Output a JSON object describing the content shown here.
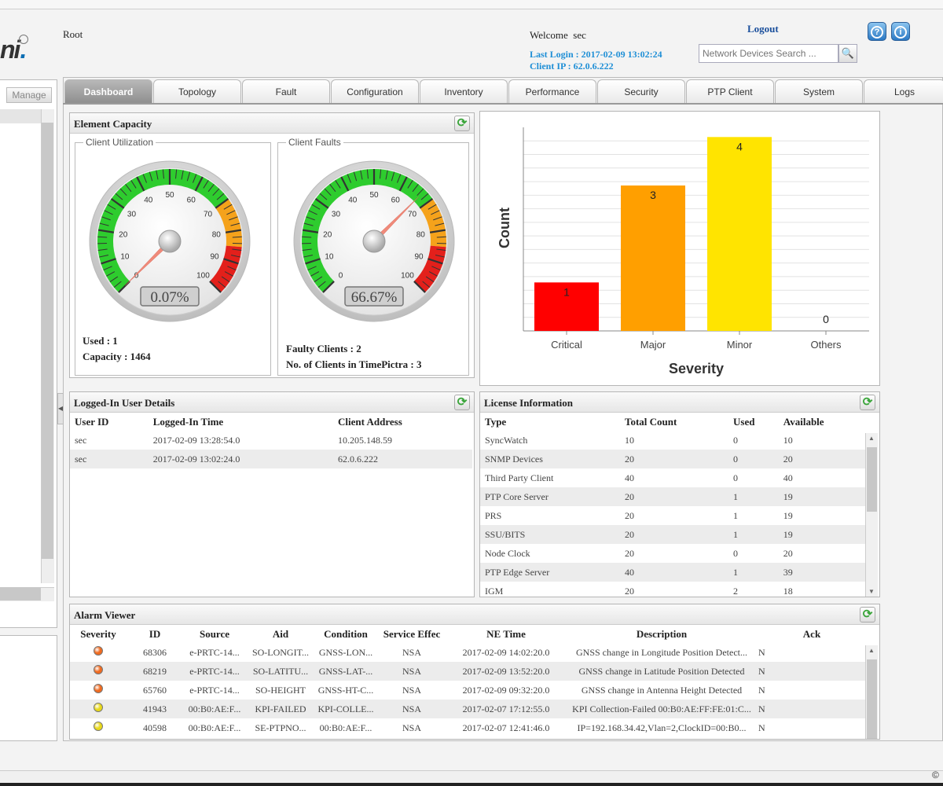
{
  "header": {
    "logo_text": "ni",
    "user_role": "Root",
    "welcome_label": "Welcome",
    "welcome_user": "sec",
    "logout_label": "Logout",
    "last_login": "Last Login : 2017-02-09 13:02:24",
    "client_ip": "Client IP : 62.0.6.222",
    "search_placeholder": "Network Devices Search ...",
    "help_icon": "?",
    "info_icon": "i"
  },
  "left_panel": {
    "manage_label": "Manage"
  },
  "tabs": [
    {
      "label": "Dashboard",
      "active": true
    },
    {
      "label": "Topology"
    },
    {
      "label": "Fault"
    },
    {
      "label": "Configuration"
    },
    {
      "label": "Inventory"
    },
    {
      "label": "Performance"
    },
    {
      "label": "Security"
    },
    {
      "label": "PTP Client"
    },
    {
      "label": "System"
    },
    {
      "label": "Logs"
    }
  ],
  "element_capacity": {
    "title": "Element Capacity",
    "utilization": {
      "legend": "Client Utilization",
      "value_text": "0.07%",
      "value": 0.07,
      "used": "Used : 1",
      "capacity": "Capacity : 1464"
    },
    "faults": {
      "legend": "Client Faults",
      "value_text": "66.67%",
      "value": 66.67,
      "faulty": "Faulty Clients : 2",
      "total": "No. of Clients in TimePictra : 3"
    },
    "gauge_ticks": [
      "0",
      "10",
      "20",
      "30",
      "40",
      "50",
      "60",
      "70",
      "80",
      "90",
      "100"
    ],
    "colors": {
      "green": "#2ecc2e",
      "orange": "#f5a21b",
      "red": "#e3201b"
    }
  },
  "chart_data": {
    "type": "bar",
    "categories": [
      "Critical",
      "Major",
      "Minor",
      "Others"
    ],
    "values": [
      1,
      3,
      4,
      0
    ],
    "colors": [
      "#ff0000",
      "#ff9f00",
      "#ffe400",
      "#cccccc"
    ],
    "title": "",
    "xlabel": "Severity",
    "ylabel": "Count",
    "ylim": [
      0,
      4.2
    ],
    "grid": true
  },
  "logged_in": {
    "title": "Logged-In User Details",
    "columns": [
      "User ID",
      "Logged-In Time",
      "Client Address"
    ],
    "rows": [
      [
        "sec",
        "2017-02-09 13:28:54.0",
        "10.205.148.59"
      ],
      [
        "sec",
        "2017-02-09 13:02:24.0",
        "62.0.6.222"
      ]
    ]
  },
  "license": {
    "title": "License Information",
    "columns": [
      "Type",
      "Total Count",
      "Used",
      "Available"
    ],
    "rows": [
      [
        "SyncWatch",
        "10",
        "0",
        "10"
      ],
      [
        "SNMP Devices",
        "20",
        "0",
        "20"
      ],
      [
        "Third Party Client",
        "40",
        "0",
        "40"
      ],
      [
        "PTP Core Server",
        "20",
        "1",
        "19"
      ],
      [
        "PRS",
        "20",
        "1",
        "19"
      ],
      [
        "SSU/BITS",
        "20",
        "1",
        "19"
      ],
      [
        "Node Clock",
        "20",
        "0",
        "20"
      ],
      [
        "PTP Edge Server",
        "40",
        "1",
        "39"
      ],
      [
        "IGM",
        "20",
        "2",
        "18"
      ]
    ]
  },
  "alarms": {
    "title": "Alarm Viewer",
    "columns": [
      "Severity",
      "ID",
      "Source",
      "Aid",
      "Condition",
      "Service Effec",
      "NE Time",
      "Description",
      "Ack"
    ],
    "rows": [
      {
        "severity": "major",
        "cells": [
          "68306",
          "e-PRTC-14...",
          "SO-LONGIT...",
          "GNSS-LON...",
          "NSA",
          "2017-02-09 14:02:20.0",
          "GNSS change in Longitude Position Detect...",
          "N"
        ]
      },
      {
        "severity": "major",
        "cells": [
          "68219",
          "e-PRTC-14...",
          "SO-LATITU...",
          "GNSS-LAT-...",
          "NSA",
          "2017-02-09 13:52:20.0",
          "GNSS change in Latitude Position Detected",
          "N"
        ]
      },
      {
        "severity": "major",
        "cells": [
          "65760",
          "e-PRTC-14...",
          "SO-HEIGHT",
          "GNSS-HT-C...",
          "NSA",
          "2017-02-09 09:32:20.0",
          "GNSS change in Antenna Height Detected",
          "N"
        ]
      },
      {
        "severity": "minor",
        "cells": [
          "41943",
          "00:B0:AE:F...",
          "KPI-FAILED",
          "KPI-COLLE...",
          "NSA",
          "2017-02-07 17:12:55.0",
          "KPI Collection-Failed 00:B0:AE:FF:FE:01:C...",
          "N"
        ]
      },
      {
        "severity": "minor",
        "cells": [
          "40598",
          "00:B0:AE:F...",
          "SE-PTPNO...",
          "00:B0:AE:F...",
          "NSA",
          "2017-02-07 12:41:46.0",
          "IP=192.168.34.42,Vlan=2,ClockID=00:B0...",
          "N"
        ]
      }
    ],
    "severity_colors": {
      "major": "#f06a1f",
      "minor": "#e8d81a"
    }
  },
  "footer": {
    "copyright": "©"
  }
}
